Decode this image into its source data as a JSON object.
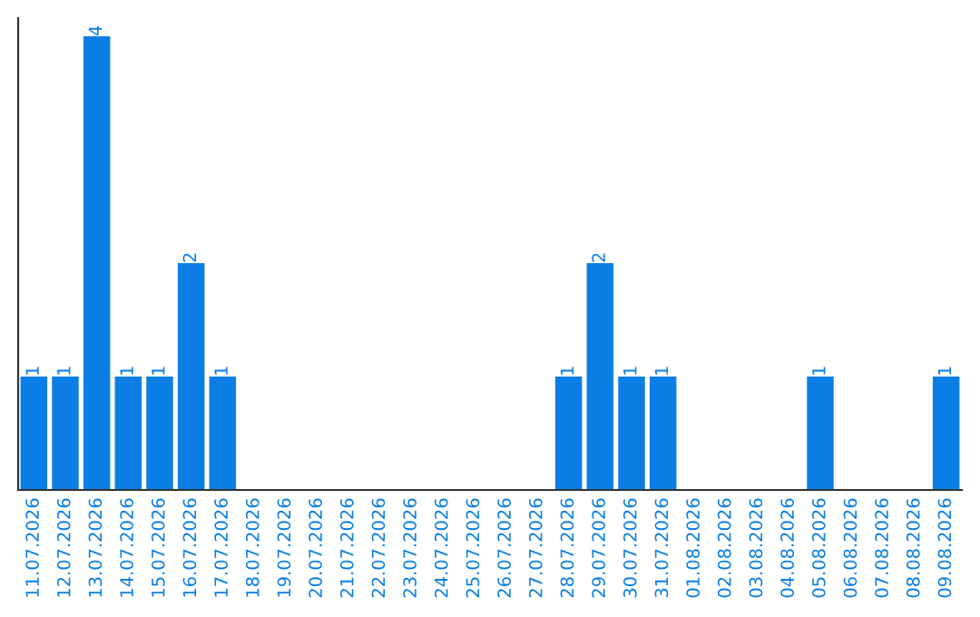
{
  "chart_data": {
    "type": "bar",
    "categories": [
      "11.07.2026",
      "12.07.2026",
      "13.07.2026",
      "14.07.2026",
      "15.07.2026",
      "16.07.2026",
      "17.07.2026",
      "18.07.2026",
      "19.07.2026",
      "20.07.2026",
      "21.07.2026",
      "22.07.2026",
      "23.07.2026",
      "24.07.2026",
      "25.07.2026",
      "26.07.2026",
      "27.07.2026",
      "28.07.2026",
      "29.07.2026",
      "30.07.2026",
      "31.07.2026",
      "01.08.2026",
      "02.08.2026",
      "03.08.2026",
      "04.08.2026",
      "05.08.2026",
      "06.08.2026",
      "07.08.2026",
      "08.08.2026",
      "09.08.2026"
    ],
    "values": [
      1,
      1,
      4,
      1,
      1,
      2,
      1,
      0,
      0,
      0,
      0,
      0,
      0,
      0,
      0,
      0,
      0,
      1,
      2,
      1,
      1,
      0,
      0,
      0,
      0,
      1,
      0,
      0,
      0,
      1
    ],
    "value_labels": [
      "1",
      "1",
      "4",
      "1",
      "1",
      "2",
      "1",
      null,
      null,
      null,
      null,
      null,
      null,
      null,
      null,
      null,
      null,
      "1",
      "2",
      "1",
      "1",
      null,
      null,
      null,
      null,
      "1",
      null,
      null,
      null,
      "1"
    ],
    "color": "#0a7ee4",
    "grid": false,
    "legend": false
  }
}
